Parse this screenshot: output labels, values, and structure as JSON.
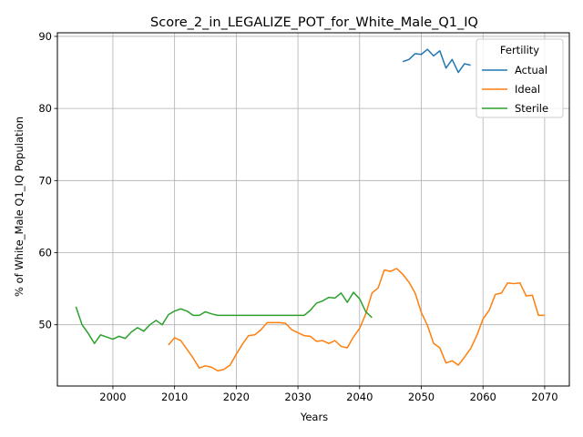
{
  "chart_data": {
    "type": "line",
    "title": "Score_2_in_LEGALIZE_POT_for_White_Male_Q1_IQ",
    "xlabel": "Years",
    "ylabel": "% of White_Male Q1_IQ Population",
    "xlim": [
      1991,
      2074
    ],
    "ylim": [
      41.5,
      90.5
    ],
    "xticks": [
      2000,
      2010,
      2020,
      2030,
      2040,
      2050,
      2060,
      2070
    ],
    "yticks": [
      50,
      60,
      70,
      80,
      90
    ],
    "grid": true,
    "legend": {
      "title": "Fertility",
      "position": "top-right"
    },
    "series": [
      {
        "name": "Actual",
        "color": "#1f77b4",
        "x": [
          2047,
          2048,
          2049,
          2050,
          2051,
          2052,
          2053,
          2054,
          2055,
          2056,
          2057,
          2058
        ],
        "y": [
          86.5,
          86.8,
          87.6,
          87.5,
          88.2,
          87.3,
          88.0,
          85.6,
          86.8,
          85.0,
          86.2,
          86.0
        ]
      },
      {
        "name": "Ideal",
        "color": "#ff7f0e",
        "x": [
          2009,
          2010,
          2011,
          2012,
          2013,
          2014,
          2015,
          2016,
          2017,
          2018,
          2019,
          2020,
          2021,
          2022,
          2023,
          2024,
          2025,
          2026,
          2027,
          2028,
          2029,
          2030,
          2031,
          2032,
          2033,
          2034,
          2035,
          2036,
          2037,
          2038,
          2039,
          2040,
          2041,
          2042,
          2043,
          2044,
          2045,
          2046,
          2047,
          2048,
          2049,
          2050,
          2051,
          2052,
          2053,
          2054,
          2055,
          2056,
          2057,
          2058,
          2059,
          2060,
          2061,
          2062,
          2063,
          2064,
          2065,
          2066,
          2067,
          2068,
          2069,
          2070
        ],
        "y": [
          47.2,
          48.2,
          47.8,
          46.6,
          45.4,
          44.0,
          44.3,
          44.1,
          43.6,
          43.8,
          44.4,
          45.9,
          47.3,
          48.5,
          48.6,
          49.3,
          50.3,
          50.3,
          50.3,
          50.2,
          49.3,
          48.9,
          48.5,
          48.4,
          47.7,
          47.8,
          47.4,
          47.8,
          47.0,
          46.8,
          48.3,
          49.5,
          51.5,
          54.4,
          55.1,
          57.6,
          57.4,
          57.8,
          57.0,
          55.9,
          54.4,
          51.7,
          49.9,
          47.4,
          46.8,
          44.7,
          45.0,
          44.4,
          45.5,
          46.7,
          48.5,
          50.8,
          52.0,
          54.2,
          54.4,
          55.8,
          55.7,
          55.8,
          54.0,
          54.1,
          51.3,
          51.3
        ]
      },
      {
        "name": "Sterile",
        "color": "#2ca02c",
        "x": [
          1994,
          1995,
          1996,
          1997,
          1998,
          1999,
          2000,
          2001,
          2002,
          2003,
          2004,
          2005,
          2006,
          2007,
          2008,
          2009,
          2010,
          2011,
          2012,
          2013,
          2014,
          2015,
          2016,
          2017,
          2018,
          2019,
          2020,
          2021,
          2022,
          2023,
          2024,
          2025,
          2026,
          2027,
          2028,
          2029,
          2030,
          2031,
          2032,
          2033,
          2034,
          2035,
          2036,
          2037,
          2038,
          2039,
          2040,
          2041,
          2042
        ],
        "y": [
          52.5,
          50.0,
          48.8,
          47.4,
          48.6,
          48.3,
          48.0,
          48.4,
          48.1,
          49.0,
          49.6,
          49.1,
          50.0,
          50.6,
          50.0,
          51.4,
          51.9,
          52.2,
          51.9,
          51.3,
          51.3,
          51.8,
          51.5,
          51.3,
          51.3,
          51.3,
          51.3,
          51.3,
          51.3,
          51.3,
          51.3,
          51.3,
          51.3,
          51.3,
          51.3,
          51.3,
          51.3,
          51.3,
          52.0,
          53.0,
          53.3,
          53.8,
          53.7,
          54.4,
          53.1,
          54.5,
          53.6,
          51.8,
          51.0
        ]
      }
    ]
  }
}
